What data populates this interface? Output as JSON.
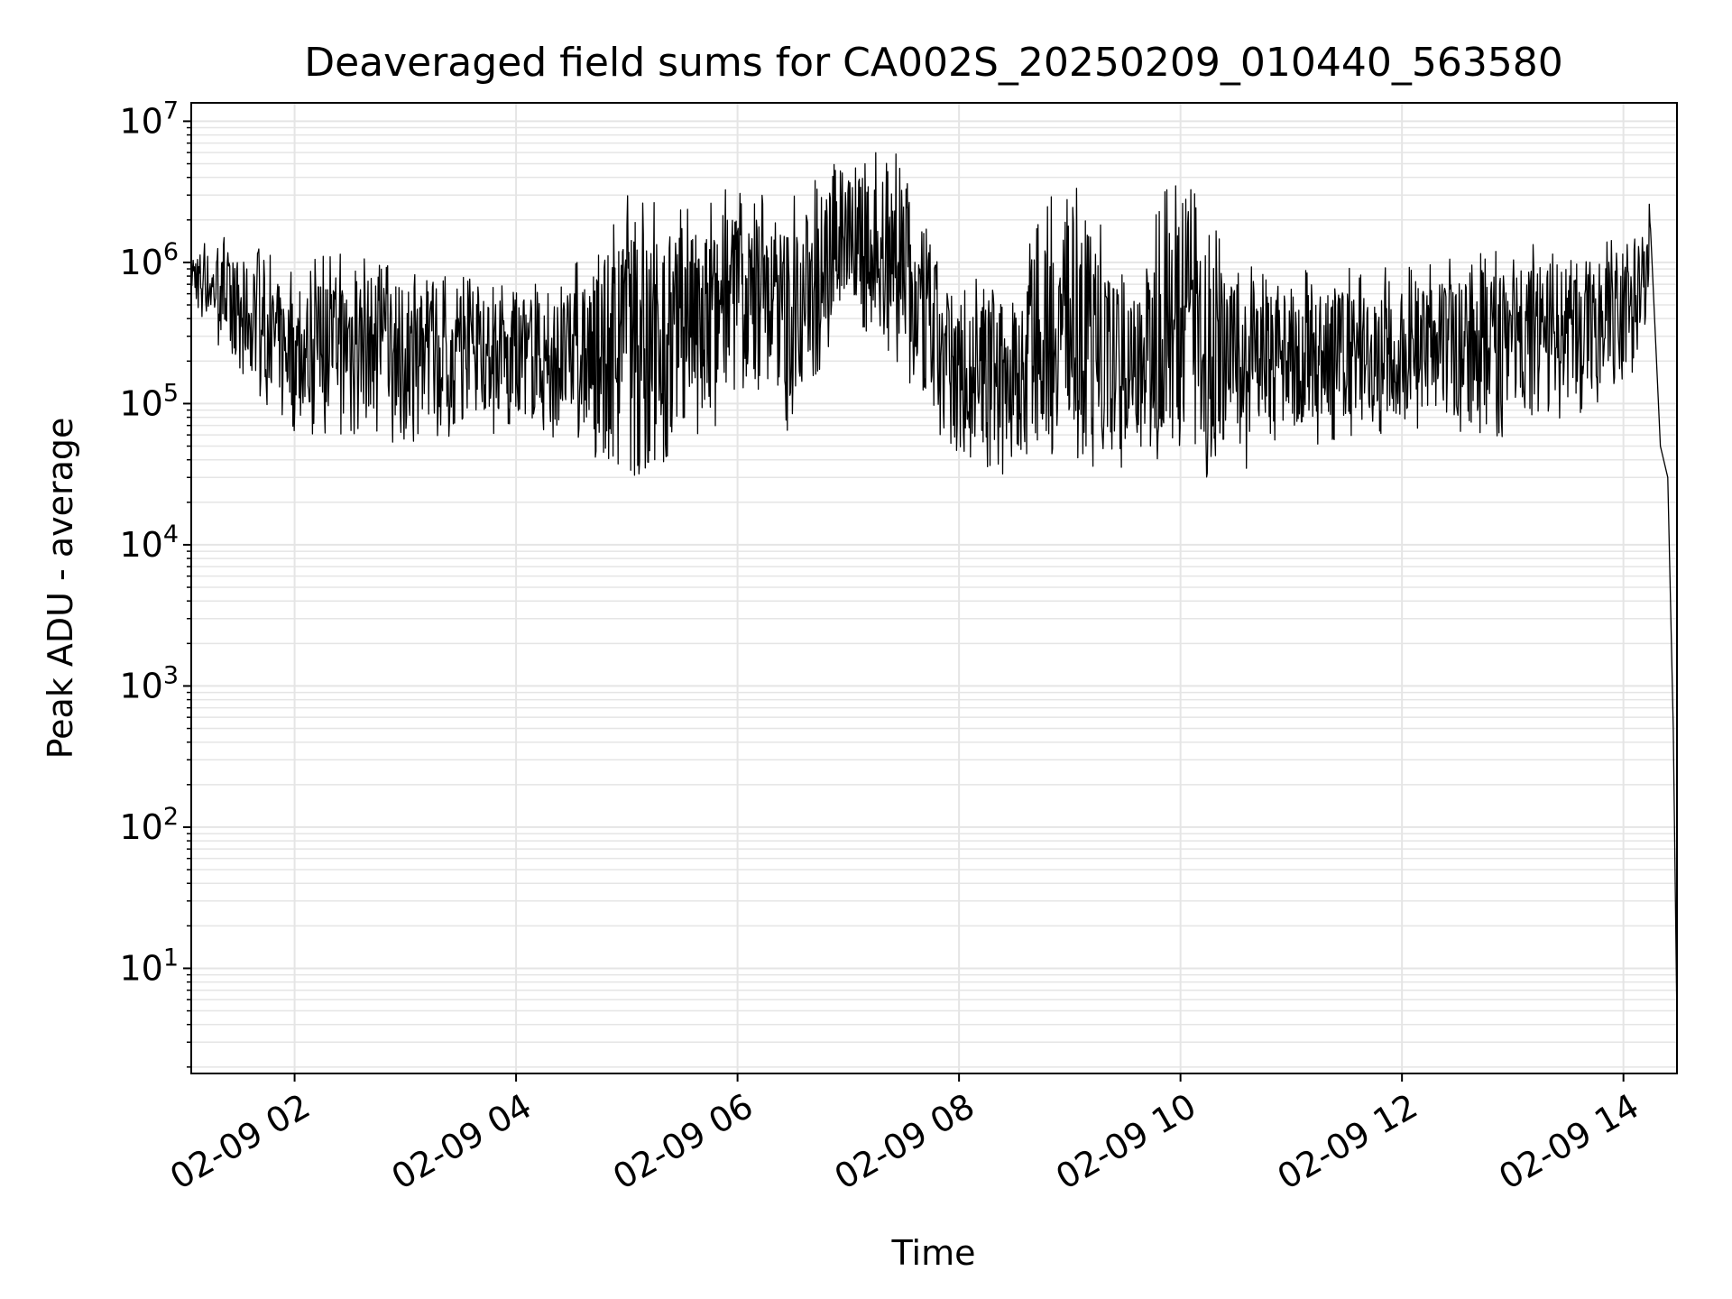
{
  "chart_data": {
    "type": "line",
    "title": "Deaveraged field sums for CA002S_20250209_010440_563580",
    "xlabel": "Time",
    "ylabel": "Peak ADU - average",
    "y_scale": "log",
    "xlim": [
      "2025-02-09 01:04",
      "2025-02-09 14:29"
    ],
    "ylim": [
      1.8,
      13500000
    ],
    "grid": true,
    "x_ticks": [
      {
        "value": "2025-02-09 02:00",
        "label": "02-09 02"
      },
      {
        "value": "2025-02-09 04:00",
        "label": "02-09 04"
      },
      {
        "value": "2025-02-09 06:00",
        "label": "02-09 06"
      },
      {
        "value": "2025-02-09 08:00",
        "label": "02-09 08"
      },
      {
        "value": "2025-02-09 10:00",
        "label": "02-09 10"
      },
      {
        "value": "2025-02-09 12:00",
        "label": "02-09 12"
      },
      {
        "value": "2025-02-09 14:00",
        "label": "02-09 14"
      }
    ],
    "y_ticks": [
      {
        "value": 10,
        "base": "10",
        "exp": "1"
      },
      {
        "value": 100,
        "base": "10",
        "exp": "2"
      },
      {
        "value": 1000,
        "base": "10",
        "exp": "3"
      },
      {
        "value": 10000,
        "base": "10",
        "exp": "4"
      },
      {
        "value": 100000,
        "base": "10",
        "exp": "5"
      },
      {
        "value": 1000000,
        "base": "10",
        "exp": "6"
      },
      {
        "value": 10000000,
        "base": "10",
        "exp": "7"
      }
    ],
    "line_color": "#000000",
    "grid_color": "#e5e5e5",
    "series": [
      {
        "x": [
          "2025-02-09 01:04",
          "2025-02-09 01:15",
          "2025-02-09 01:30",
          "2025-02-09 01:45",
          "2025-02-09 02:00",
          "2025-02-09 02:15",
          "2025-02-09 02:30",
          "2025-02-09 02:45",
          "2025-02-09 03:00",
          "2025-02-09 03:15",
          "2025-02-09 03:30",
          "2025-02-09 03:45",
          "2025-02-09 04:00",
          "2025-02-09 04:15",
          "2025-02-09 04:30",
          "2025-02-09 04:45",
          "2025-02-09 05:00",
          "2025-02-09 05:15",
          "2025-02-09 05:30",
          "2025-02-09 05:45",
          "2025-02-09 06:00",
          "2025-02-09 06:15",
          "2025-02-09 06:30",
          "2025-02-09 06:45",
          "2025-02-09 07:00",
          "2025-02-09 07:15",
          "2025-02-09 07:30",
          "2025-02-09 07:45",
          "2025-02-09 08:00",
          "2025-02-09 08:15",
          "2025-02-09 08:30",
          "2025-02-09 08:45",
          "2025-02-09 09:00",
          "2025-02-09 09:15",
          "2025-02-09 09:30",
          "2025-02-09 09:45",
          "2025-02-09 10:00",
          "2025-02-09 10:15",
          "2025-02-09 10:30",
          "2025-02-09 10:45",
          "2025-02-09 11:00",
          "2025-02-09 11:15",
          "2025-02-09 11:30",
          "2025-02-09 11:45",
          "2025-02-09 12:00",
          "2025-02-09 12:15",
          "2025-02-09 12:30",
          "2025-02-09 12:45",
          "2025-02-09 13:00",
          "2025-02-09 13:15",
          "2025-02-09 13:30",
          "2025-02-09 13:45",
          "2025-02-09 14:00",
          "2025-02-09 14:10",
          "2025-02-09 14:15",
          "2025-02-09 14:20",
          "2025-02-09 14:24",
          "2025-02-09 14:27",
          "2025-02-09 14:29"
        ],
        "y": [
          900000,
          800000,
          400000,
          200000,
          300000,
          400000,
          500000,
          300000,
          250000,
          300000,
          300000,
          250000,
          200000,
          180000,
          200000,
          250000,
          250000,
          250000,
          200000,
          300000,
          500000,
          500000,
          400000,
          600000,
          1500000,
          1200000,
          500000,
          400000,
          250000,
          200000,
          150000,
          200000,
          200000,
          200000,
          250000,
          200000,
          250000,
          200000,
          200000,
          200000,
          250000,
          200000,
          150000,
          150000,
          200000,
          400000,
          300000,
          250000,
          300000,
          400000,
          350000,
          300000,
          600000,
          900000,
          800000,
          50000,
          30000,
          500,
          4
        ]
      }
    ],
    "envelope": {
      "x": [
        "2025-02-09 01:04",
        "2025-02-09 01:30",
        "2025-02-09 02:00",
        "2025-02-09 02:30",
        "2025-02-09 03:00",
        "2025-02-09 03:30",
        "2025-02-09 04:00",
        "2025-02-09 04:30",
        "2025-02-09 05:00",
        "2025-02-09 05:30",
        "2025-02-09 06:00",
        "2025-02-09 06:30",
        "2025-02-09 07:00",
        "2025-02-09 07:30",
        "2025-02-09 08:00",
        "2025-02-09 08:30",
        "2025-02-09 09:00",
        "2025-02-09 09:30",
        "2025-02-09 10:00",
        "2025-02-09 10:30",
        "2025-02-09 11:00",
        "2025-02-09 11:30",
        "2025-02-09 12:00",
        "2025-02-09 12:30",
        "2025-02-09 13:00",
        "2025-02-09 13:30",
        "2025-02-09 14:00",
        "2025-02-09 14:15"
      ],
      "max": [
        1500000,
        1500000,
        900000,
        1500000,
        1000000,
        800000,
        700000,
        1000000,
        3000000,
        3000000,
        3500000,
        3500000,
        6000000,
        6000000,
        800000,
        800000,
        6000000,
        800000,
        6000000,
        1000000,
        900000,
        1000000,
        900000,
        1200000,
        1400000,
        1600000,
        1500000,
        2700000
      ],
      "min": [
        500000,
        150000,
        60000,
        60000,
        50000,
        60000,
        60000,
        40000,
        30000,
        35000,
        100000,
        60000,
        500000,
        100000,
        30000,
        30000,
        35000,
        35000,
        30000,
        30000,
        50000,
        50000,
        60000,
        50000,
        60000,
        80000,
        100000,
        400000
      ]
    }
  }
}
